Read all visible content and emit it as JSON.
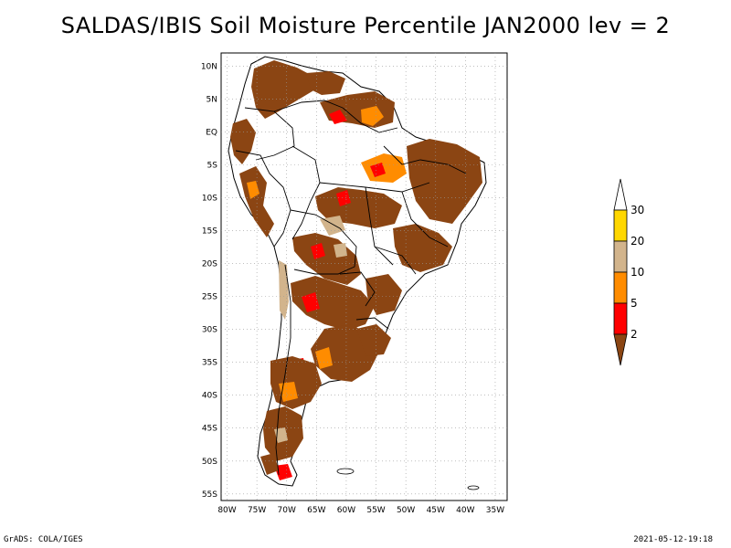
{
  "title": "SALDAS/IBIS Soil Moisture Percentile JAN2000 lev = 2",
  "footer": {
    "left": "GrADS: COLA/IGES",
    "right": "2021-05-12-19:18"
  },
  "map": {
    "lon_labels": [
      "80W",
      "75W",
      "70W",
      "65W",
      "60W",
      "55W",
      "50W",
      "45W",
      "40W",
      "35W"
    ],
    "lat_labels": [
      "10N",
      "5N",
      "EQ",
      "5S",
      "10S",
      "15S",
      "20S",
      "25S",
      "30S",
      "35S",
      "40S",
      "45S",
      "50S",
      "55S"
    ],
    "lon_range": [
      -81,
      -33
    ],
    "lat_range": [
      -56,
      12
    ],
    "grid": "dotted"
  },
  "colorbar": {
    "labels": [
      "2",
      "5",
      "10",
      "20",
      "30"
    ],
    "colors": [
      "#8b4513",
      "#ff0000",
      "#ff8c00",
      "#d2b48c",
      "#ffd700",
      "#ffffff"
    ]
  },
  "colors": {
    "brown": "#8b4513",
    "red": "#ff0000",
    "orange": "#ff8c00",
    "tan": "#d2b48c",
    "gold": "#ffd700"
  }
}
